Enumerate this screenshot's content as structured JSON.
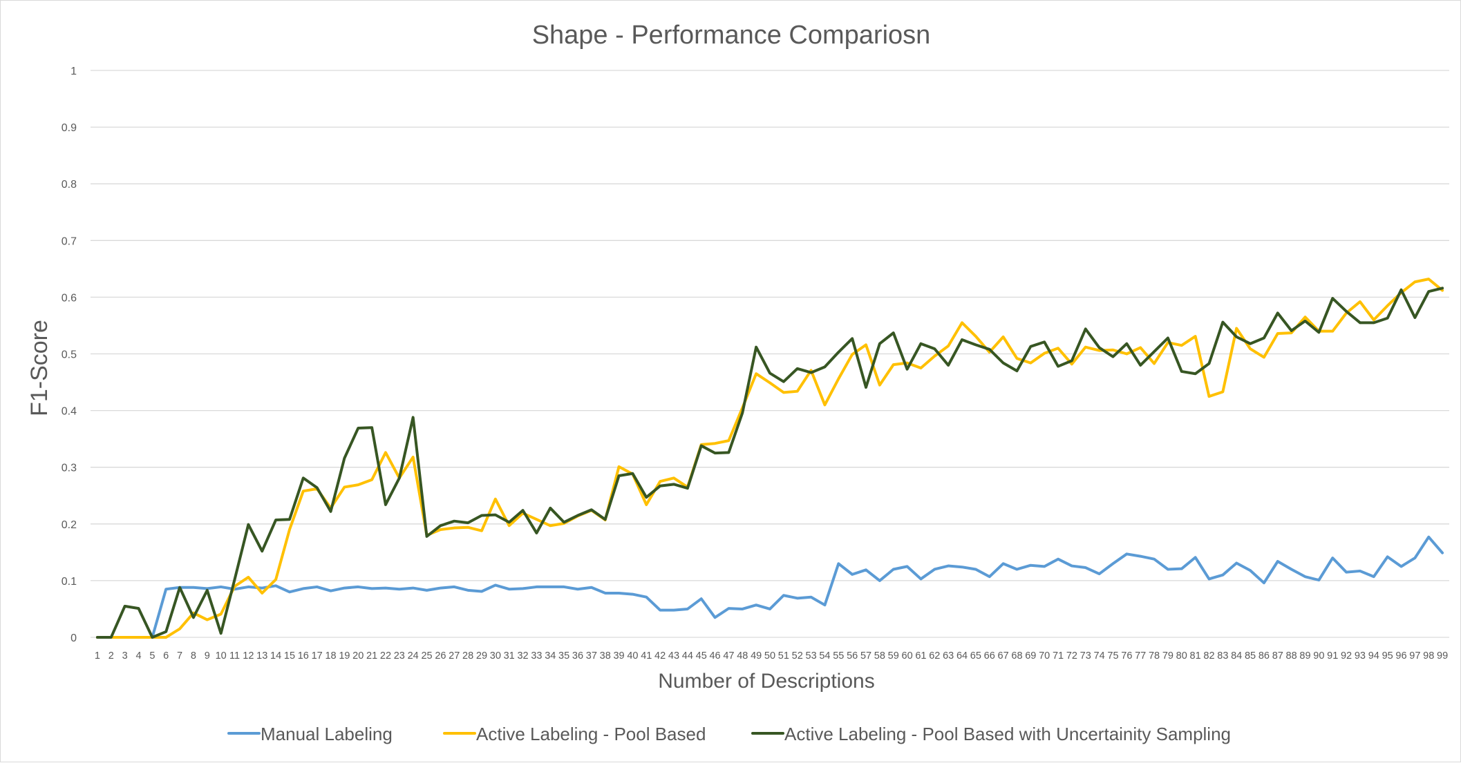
{
  "chart_data": {
    "type": "line",
    "title": "Shape - Performance Compariosn",
    "xlabel": "Number of Descriptions",
    "ylabel": "F1-Score",
    "ylim": [
      0,
      1
    ],
    "yticks": [
      "0",
      "0.1",
      "0.2",
      "0.3",
      "0.4",
      "0.5",
      "0.6",
      "0.7",
      "0.8",
      "0.9",
      "1"
    ],
    "grid": true,
    "legend_position": "bottom",
    "x": [
      1,
      2,
      3,
      4,
      5,
      6,
      7,
      8,
      9,
      10,
      11,
      12,
      13,
      14,
      15,
      16,
      17,
      18,
      19,
      20,
      21,
      22,
      23,
      24,
      25,
      26,
      27,
      28,
      29,
      30,
      31,
      32,
      33,
      34,
      35,
      36,
      37,
      38,
      39,
      40,
      41,
      42,
      43,
      44,
      45,
      46,
      47,
      48,
      49,
      50,
      51,
      52,
      53,
      54,
      55,
      56,
      57,
      58,
      59,
      60,
      61,
      62,
      63,
      64,
      65,
      66,
      67,
      68,
      69,
      70,
      71,
      72,
      73,
      74,
      75,
      76,
      77,
      78,
      79,
      80,
      81,
      82,
      83,
      84,
      85,
      86,
      87,
      88,
      89,
      90,
      91,
      92,
      93,
      94,
      95,
      96,
      97,
      98,
      99
    ],
    "series": [
      {
        "name": "Manual Labeling",
        "color": "#5b9bd5",
        "values": [
          0,
          0,
          0,
          0,
          0,
          0.085,
          0.088,
          0.088,
          0.086,
          0.089,
          0.085,
          0.089,
          0.087,
          0.091,
          0.08,
          0.086,
          0.089,
          0.082,
          0.087,
          0.089,
          0.086,
          0.087,
          0.085,
          0.087,
          0.083,
          0.087,
          0.089,
          0.083,
          0.081,
          0.092,
          0.085,
          0.086,
          0.089,
          0.089,
          0.089,
          0.085,
          0.088,
          0.078,
          0.078,
          0.076,
          0.071,
          0.048,
          0.048,
          0.05,
          0.068,
          0.035,
          0.051,
          0.05,
          0.057,
          0.05,
          0.074,
          0.069,
          0.071,
          0.057,
          0.13,
          0.111,
          0.119,
          0.1,
          0.12,
          0.125,
          0.103,
          0.12,
          0.126,
          0.124,
          0.12,
          0.107,
          0.13,
          0.12,
          0.127,
          0.125,
          0.138,
          0.126,
          0.123,
          0.112,
          0.13,
          0.147,
          0.143,
          0.138,
          0.12,
          0.121,
          0.141,
          0.103,
          0.11,
          0.131,
          0.118,
          0.096,
          0.134,
          0.12,
          0.107,
          0.101,
          0.14,
          0.115,
          0.117,
          0.107,
          0.142,
          0.125,
          0.14,
          0.177,
          0.149
        ]
      },
      {
        "name": "Active Labeling - Pool Based",
        "color": "#ffc000",
        "values": [
          0,
          0,
          0,
          0,
          0,
          0,
          0.015,
          0.043,
          0.031,
          0.041,
          0.09,
          0.106,
          0.078,
          0.102,
          0.19,
          0.258,
          0.262,
          0.228,
          0.265,
          0.269,
          0.278,
          0.326,
          0.281,
          0.318,
          0.18,
          0.19,
          0.193,
          0.194,
          0.188,
          0.244,
          0.197,
          0.219,
          0.208,
          0.197,
          0.201,
          0.214,
          0.224,
          0.207,
          0.301,
          0.288,
          0.234,
          0.275,
          0.281,
          0.265,
          0.34,
          0.342,
          0.347,
          0.405,
          0.465,
          0.449,
          0.432,
          0.434,
          0.471,
          0.41,
          0.456,
          0.499,
          0.516,
          0.445,
          0.481,
          0.484,
          0.475,
          0.496,
          0.514,
          0.555,
          0.531,
          0.503,
          0.53,
          0.492,
          0.484,
          0.501,
          0.51,
          0.482,
          0.512,
          0.506,
          0.507,
          0.5,
          0.511,
          0.483,
          0.52,
          0.515,
          0.531,
          0.425,
          0.433,
          0.545,
          0.509,
          0.494,
          0.536,
          0.537,
          0.565,
          0.54,
          0.54,
          0.572,
          0.592,
          0.56,
          0.585,
          0.608,
          0.627,
          0.632,
          0.612
        ]
      },
      {
        "name": "Active Labeling - Pool Based with Uncertainity Sampling",
        "color": "#375623",
        "values": [
          0,
          0,
          0.055,
          0.051,
          0,
          0.01,
          0.088,
          0.035,
          0.083,
          0.007,
          0.102,
          0.199,
          0.152,
          0.207,
          0.208,
          0.281,
          0.264,
          0.222,
          0.316,
          0.369,
          0.37,
          0.234,
          0.281,
          0.388,
          0.178,
          0.197,
          0.205,
          0.202,
          0.215,
          0.216,
          0.203,
          0.224,
          0.184,
          0.228,
          0.203,
          0.215,
          0.225,
          0.208,
          0.285,
          0.289,
          0.247,
          0.267,
          0.27,
          0.263,
          0.338,
          0.325,
          0.326,
          0.396,
          0.512,
          0.466,
          0.451,
          0.474,
          0.467,
          0.477,
          0.503,
          0.527,
          0.441,
          0.518,
          0.537,
          0.473,
          0.518,
          0.509,
          0.48,
          0.525,
          0.516,
          0.508,
          0.484,
          0.47,
          0.513,
          0.521,
          0.478,
          0.488,
          0.544,
          0.511,
          0.495,
          0.518,
          0.48,
          0.504,
          0.528,
          0.469,
          0.465,
          0.483,
          0.556,
          0.53,
          0.518,
          0.528,
          0.572,
          0.541,
          0.558,
          0.538,
          0.598,
          0.575,
          0.555,
          0.555,
          0.563,
          0.613,
          0.564,
          0.61,
          0.616
        ]
      }
    ]
  }
}
